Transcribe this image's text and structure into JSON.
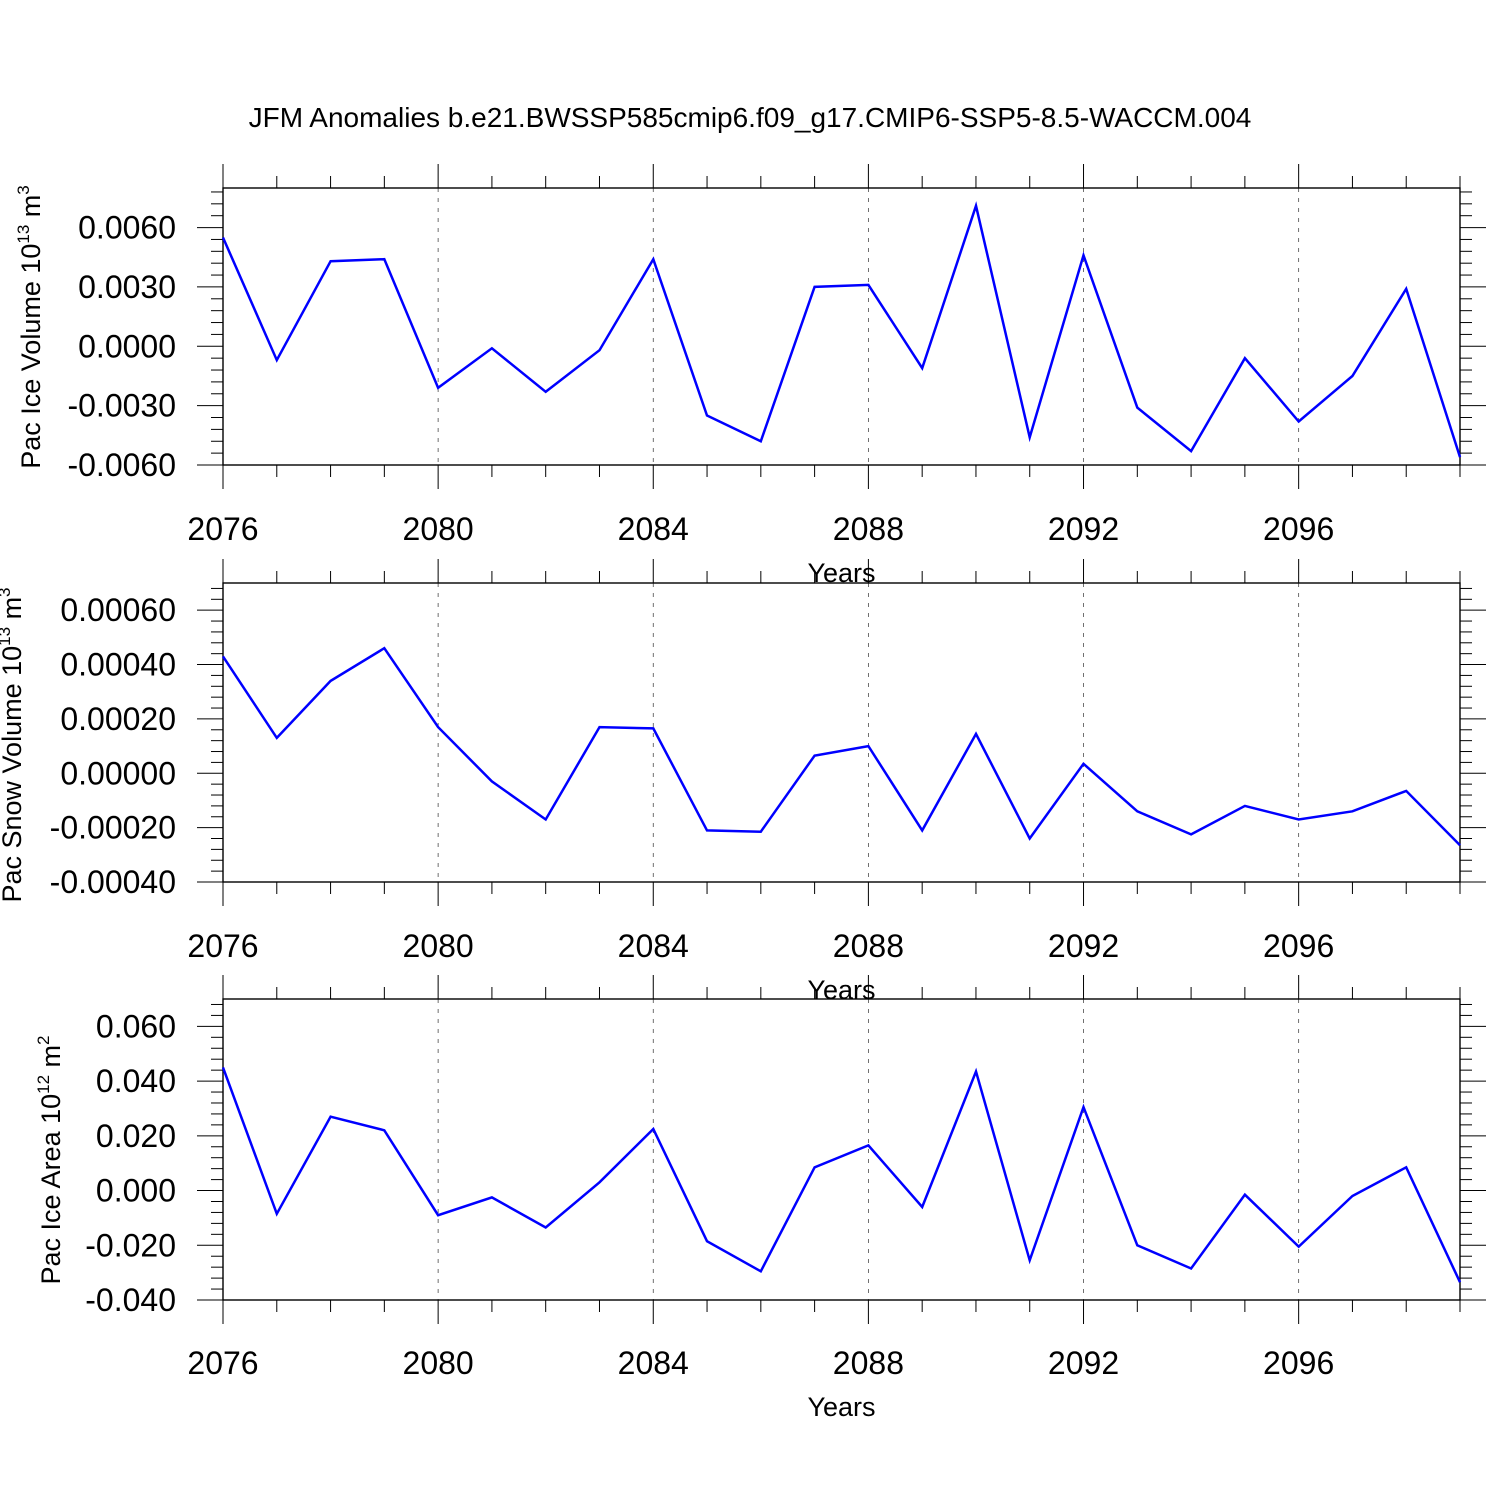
{
  "title": "JFM Anomalies b.e21.BWSSP585cmip6.f09_g17.CMIP6-SSP5-8.5-WACCM.004",
  "colors": {
    "line": "#0000ff",
    "axis": "#000000",
    "grid": "#000000",
    "background": "#ffffff"
  },
  "chart_data": [
    {
      "type": "line",
      "xlabel": "Years",
      "ylabel": {
        "base": "Pac Ice Volume 10",
        "exp": "13",
        "unit": " m",
        "unit_exp": "3"
      },
      "x": [
        2076,
        2077,
        2078,
        2079,
        2080,
        2081,
        2082,
        2083,
        2084,
        2085,
        2086,
        2087,
        2088,
        2089,
        2090,
        2091,
        2092,
        2093,
        2094,
        2095,
        2096,
        2097,
        2098,
        2099
      ],
      "values": [
        0.0055,
        -0.0007,
        0.0043,
        0.0044,
        -0.0021,
        -0.0001,
        -0.0023,
        -0.0002,
        0.0044,
        -0.0035,
        -0.0048,
        0.003,
        0.0031,
        -0.0011,
        0.0071,
        -0.0046,
        0.0046,
        -0.0031,
        -0.0053,
        -0.0006,
        -0.0038,
        -0.0015,
        0.0029,
        -0.0056
      ],
      "xlim": [
        2076,
        2099
      ],
      "ylim": [
        -0.006,
        0.008
      ],
      "yticks": [
        -0.006,
        -0.003,
        0.0,
        0.003,
        0.006
      ],
      "ytick_labels": [
        "-0.0060",
        "-0.0030",
        "0.0000",
        "0.0030",
        "0.0060"
      ],
      "xticks": [
        2076,
        2080,
        2084,
        2088,
        2092,
        2096
      ],
      "xtick_labels": [
        "2076",
        "2080",
        "2084",
        "2088",
        "2092",
        "2096"
      ],
      "grid": "vertical dashed at labeled years"
    },
    {
      "type": "line",
      "xlabel": "Years",
      "ylabel": {
        "base": "Pac Snow Volume 10",
        "exp": "13",
        "unit": " m",
        "unit_exp": "3"
      },
      "x": [
        2076,
        2077,
        2078,
        2079,
        2080,
        2081,
        2082,
        2083,
        2084,
        2085,
        2086,
        2087,
        2088,
        2089,
        2090,
        2091,
        2092,
        2093,
        2094,
        2095,
        2096,
        2097,
        2098,
        2099
      ],
      "values": [
        0.00043,
        0.00013,
        0.00034,
        0.00046,
        0.00017,
        -3e-05,
        -0.00017,
        0.00017,
        0.000165,
        -0.00021,
        -0.000215,
        6.5e-05,
        0.0001,
        -0.00021,
        0.000145,
        -0.00024,
        3.5e-05,
        -0.00014,
        -0.000225,
        -0.00012,
        -0.00017,
        -0.00014,
        -6.5e-05,
        -0.000265
      ],
      "xlim": [
        2076,
        2099
      ],
      "ylim": [
        -0.0004,
        0.0007
      ],
      "yticks": [
        -0.0004,
        -0.0002,
        0.0,
        0.0002,
        0.0004,
        0.0006
      ],
      "ytick_labels": [
        "-0.00040",
        "-0.00020",
        "0.00000",
        "0.00020",
        "0.00040",
        "0.00060"
      ],
      "xticks": [
        2076,
        2080,
        2084,
        2088,
        2092,
        2096
      ],
      "xtick_labels": [
        "2076",
        "2080",
        "2084",
        "2088",
        "2092",
        "2096"
      ],
      "grid": "vertical dashed at labeled years"
    },
    {
      "type": "line",
      "xlabel": "Years",
      "ylabel": {
        "base": "Pac Ice Area 10",
        "exp": "12",
        "unit": " m",
        "unit_exp": "2"
      },
      "x": [
        2076,
        2077,
        2078,
        2079,
        2080,
        2081,
        2082,
        2083,
        2084,
        2085,
        2086,
        2087,
        2088,
        2089,
        2090,
        2091,
        2092,
        2093,
        2094,
        2095,
        2096,
        2097,
        2098,
        2099
      ],
      "values": [
        0.045,
        -0.0085,
        0.027,
        0.022,
        -0.009,
        -0.0025,
        -0.0135,
        0.003,
        0.0225,
        -0.0185,
        -0.0295,
        0.0085,
        0.0165,
        -0.006,
        0.0435,
        -0.0255,
        0.0305,
        -0.02,
        -0.0285,
        -0.0015,
        -0.0205,
        -0.002,
        0.0085,
        -0.0335
      ],
      "xlim": [
        2076,
        2099
      ],
      "ylim": [
        -0.04,
        0.07
      ],
      "yticks": [
        -0.04,
        -0.02,
        0.0,
        0.02,
        0.04,
        0.06
      ],
      "ytick_labels": [
        "-0.040",
        "-0.020",
        "0.000",
        "0.020",
        "0.040",
        "0.060"
      ],
      "xticks": [
        2076,
        2080,
        2084,
        2088,
        2092,
        2096
      ],
      "xtick_labels": [
        "2076",
        "2080",
        "2084",
        "2088",
        "2092",
        "2096"
      ],
      "grid": "vertical dashed at labeled years"
    }
  ]
}
